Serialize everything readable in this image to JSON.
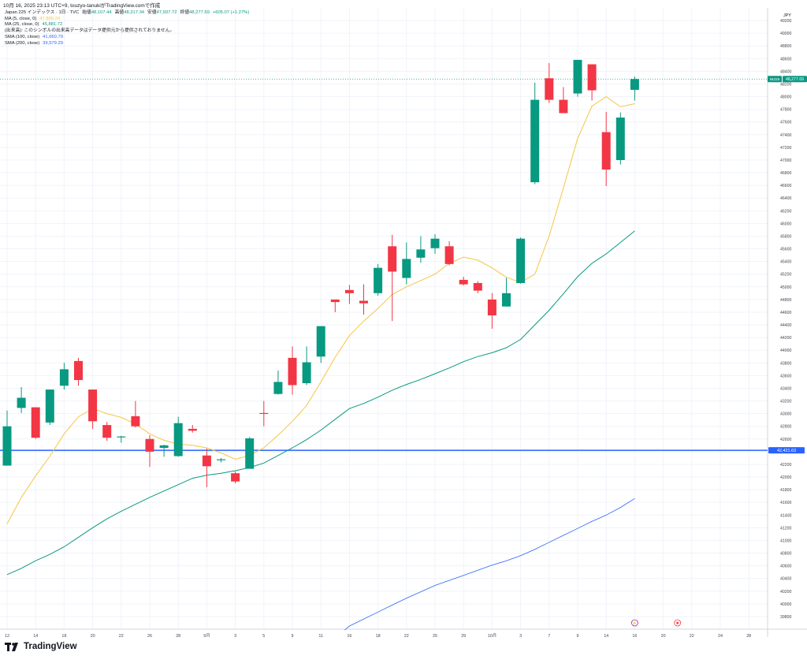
{
  "header": {
    "caption": "10月 16, 2025 23:13 UTC+9,  touzyo-tanukiがTradingView.comで作成"
  },
  "legend": {
    "symbol": "Japan 225 インデックス · 1日 · TVC",
    "open_label": "始値",
    "open": "48,107.44",
    "high_label": "高値",
    "high": "48,317.34",
    "low_label": "安値",
    "low": "47,937.72",
    "close_label": "終値",
    "close": "48,277.69",
    "change": "+605.07 (+1.27%)",
    "indicators": [
      {
        "label": "MA (5, close, 0)",
        "value": "47,889.24",
        "color": "#f5c542"
      },
      {
        "label": "MA (25, close, 0)",
        "value": "45,881.72",
        "color": "#089981"
      },
      {
        "label": "SMA (100, close)",
        "value": "41,660.79",
        "color": "#2962ff"
      },
      {
        "label": "SMA (200, close)",
        "value": "39,579.29",
        "color": "#2962ff"
      }
    ],
    "notice": "(出来高): このシンボルの出来高データはデータ提供元から提供されておりません。"
  },
  "footer": {
    "brand": "TradingView"
  },
  "chart_data": {
    "type": "candlestick",
    "currency": "JPY",
    "y_range": [
      39600,
      49400
    ],
    "y_ticks": [
      39800,
      40000,
      40200,
      40400,
      40600,
      40800,
      41000,
      41200,
      41400,
      41600,
      41800,
      42000,
      42200,
      42400,
      42600,
      42800,
      43000,
      43200,
      43400,
      43600,
      43800,
      44000,
      44200,
      44400,
      44600,
      44800,
      45000,
      45200,
      45400,
      45600,
      45800,
      46000,
      46200,
      46400,
      46600,
      46800,
      47000,
      47200,
      47400,
      47600,
      47800,
      48000,
      48200,
      48400,
      48600,
      48800,
      49000,
      49200
    ],
    "x_ticks": [
      {
        "i": 0,
        "label": "12"
      },
      {
        "i": 2,
        "label": "14"
      },
      {
        "i": 4,
        "label": "18"
      },
      {
        "i": 6,
        "label": "20"
      },
      {
        "i": 8,
        "label": "22"
      },
      {
        "i": 10,
        "label": "26"
      },
      {
        "i": 12,
        "label": "28"
      },
      {
        "i": 14,
        "label": "9月"
      },
      {
        "i": 16,
        "label": "3"
      },
      {
        "i": 18,
        "label": "5"
      },
      {
        "i": 20,
        "label": "9"
      },
      {
        "i": 22,
        "label": "11"
      },
      {
        "i": 24,
        "label": "16"
      },
      {
        "i": 26,
        "label": "18"
      },
      {
        "i": 28,
        "label": "22"
      },
      {
        "i": 30,
        "label": "25"
      },
      {
        "i": 32,
        "label": "29"
      },
      {
        "i": 34,
        "label": "10月"
      },
      {
        "i": 36,
        "label": "3"
      },
      {
        "i": 38,
        "label": "7"
      },
      {
        "i": 40,
        "label": "9"
      },
      {
        "i": 42,
        "label": "14"
      },
      {
        "i": 44,
        "label": "16"
      },
      {
        "i": 46,
        "label": "20"
      },
      {
        "i": 48,
        "label": "22"
      },
      {
        "i": 50,
        "label": "24"
      },
      {
        "i": 52,
        "label": "28"
      }
    ],
    "candles": [
      {
        "o": 42180,
        "h": 43050,
        "l": 42180,
        "c": 42800
      },
      {
        "o": 43090,
        "h": 43420,
        "l": 43010,
        "c": 43250
      },
      {
        "o": 43100,
        "h": 43100,
        "l": 42600,
        "c": 42620
      },
      {
        "o": 42860,
        "h": 43380,
        "l": 42820,
        "c": 43380
      },
      {
        "o": 43440,
        "h": 43800,
        "l": 43380,
        "c": 43700
      },
      {
        "o": 43830,
        "h": 43880,
        "l": 43440,
        "c": 43530
      },
      {
        "o": 43380,
        "h": 43380,
        "l": 42760,
        "c": 42880
      },
      {
        "o": 42820,
        "h": 42870,
        "l": 42570,
        "c": 42620
      },
      {
        "o": 42640,
        "h": 42650,
        "l": 42540,
        "c": 42640
      },
      {
        "o": 42960,
        "h": 43200,
        "l": 42780,
        "c": 42800
      },
      {
        "o": 42600,
        "h": 42660,
        "l": 42160,
        "c": 42400
      },
      {
        "o": 42460,
        "h": 42510,
        "l": 42320,
        "c": 42500
      },
      {
        "o": 42330,
        "h": 42950,
        "l": 42320,
        "c": 42850
      },
      {
        "o": 42760,
        "h": 42820,
        "l": 42700,
        "c": 42730
      },
      {
        "o": 42340,
        "h": 42450,
        "l": 41840,
        "c": 42170
      },
      {
        "o": 42280,
        "h": 42300,
        "l": 42230,
        "c": 42280
      },
      {
        "o": 42060,
        "h": 42090,
        "l": 41900,
        "c": 41930
      },
      {
        "o": 42130,
        "h": 42630,
        "l": 42130,
        "c": 42610
      },
      {
        "o": 43010,
        "h": 43200,
        "l": 42800,
        "c": 43000
      },
      {
        "o": 43310,
        "h": 43680,
        "l": 43300,
        "c": 43500
      },
      {
        "o": 43880,
        "h": 44060,
        "l": 43300,
        "c": 43450
      },
      {
        "o": 43480,
        "h": 44060,
        "l": 43450,
        "c": 43810
      },
      {
        "o": 43900,
        "h": 44380,
        "l": 43800,
        "c": 44380
      },
      {
        "o": 44800,
        "h": 44800,
        "l": 44600,
        "c": 44760
      },
      {
        "o": 44950,
        "h": 45030,
        "l": 44730,
        "c": 44900
      },
      {
        "o": 44780,
        "h": 45040,
        "l": 44560,
        "c": 44740
      },
      {
        "o": 44900,
        "h": 45360,
        "l": 44860,
        "c": 45300
      },
      {
        "o": 45640,
        "h": 45820,
        "l": 44460,
        "c": 45240
      },
      {
        "o": 45140,
        "h": 45700,
        "l": 45040,
        "c": 45440
      },
      {
        "o": 45460,
        "h": 45800,
        "l": 45380,
        "c": 45590
      },
      {
        "o": 45610,
        "h": 45830,
        "l": 45520,
        "c": 45760
      },
      {
        "o": 45640,
        "h": 45720,
        "l": 45340,
        "c": 45360
      },
      {
        "o": 45110,
        "h": 45160,
        "l": 45020,
        "c": 45040
      },
      {
        "o": 45060,
        "h": 45090,
        "l": 44900,
        "c": 44940
      },
      {
        "o": 44800,
        "h": 44900,
        "l": 44340,
        "c": 44550
      },
      {
        "o": 44690,
        "h": 45140,
        "l": 44690,
        "c": 44900
      },
      {
        "o": 45060,
        "h": 45780,
        "l": 45050,
        "c": 45760
      },
      {
        "o": 46650,
        "h": 48220,
        "l": 46620,
        "c": 47950
      },
      {
        "o": 48290,
        "h": 48530,
        "l": 47900,
        "c": 47950
      },
      {
        "o": 47950,
        "h": 48150,
        "l": 47740,
        "c": 47740
      },
      {
        "o": 48050,
        "h": 48580,
        "l": 48000,
        "c": 48580
      },
      {
        "o": 48510,
        "h": 48510,
        "l": 47940,
        "c": 48100
      },
      {
        "o": 47440,
        "h": 47760,
        "l": 46590,
        "c": 46850
      },
      {
        "o": 47000,
        "h": 47750,
        "l": 46930,
        "c": 47670
      },
      {
        "o": 48107.44,
        "h": 48317.34,
        "l": 47937.72,
        "c": 48277.69
      }
    ],
    "series": [
      {
        "name": "MA (5, close, 0)",
        "color": "#f5c542",
        "values": [
          41260,
          41680,
          42020,
          42330,
          42680,
          42950,
          43080,
          43000,
          42940,
          42840,
          42680,
          42580,
          42520,
          42500,
          42460,
          42380,
          42280,
          42340,
          42460,
          42660,
          42880,
          43130,
          43500,
          43890,
          44230,
          44460,
          44660,
          44880,
          45000,
          45100,
          45200,
          45370,
          45470,
          45420,
          45300,
          45150,
          45070,
          45200,
          45800,
          46560,
          47340,
          47850,
          48000,
          47840,
          47889.24
        ]
      },
      {
        "name": "MA (25, close, 0)",
        "color": "#089981",
        "values": [
          40460,
          40560,
          40680,
          40780,
          40900,
          41050,
          41200,
          41340,
          41460,
          41570,
          41680,
          41780,
          41880,
          41980,
          42030,
          42060,
          42100,
          42150,
          42220,
          42340,
          42460,
          42590,
          42740,
          42910,
          43080,
          43160,
          43260,
          43370,
          43460,
          43540,
          43630,
          43720,
          43820,
          43900,
          43960,
          44040,
          44170,
          44400,
          44630,
          44890,
          45160,
          45370,
          45520,
          45700,
          45881.72
        ]
      },
      {
        "name": "SMA (100, close)",
        "color": "#2962ff",
        "values": [
          null,
          null,
          null,
          null,
          null,
          null,
          null,
          null,
          null,
          null,
          null,
          null,
          null,
          null,
          null,
          null,
          null,
          null,
          null,
          null,
          null,
          null,
          null,
          null,
          39650,
          39760,
          39870,
          39980,
          40090,
          40190,
          40290,
          40370,
          40450,
          40530,
          40610,
          40680,
          40760,
          40860,
          40970,
          41080,
          41190,
          41300,
          41400,
          41520,
          41660.79
        ]
      }
    ],
    "horizontal_line": {
      "value": 42421.63,
      "label": "42,421.63",
      "color": "#2962ff"
    },
    "last_price": {
      "symbol": "NI225",
      "label": "48,277.69",
      "color": "#089981"
    },
    "up_color": "#089981",
    "down_color": "#f23645",
    "markers": [
      {
        "i": 44,
        "glyph": "⚡",
        "color": "#9c27b0"
      },
      {
        "i": 47,
        "glyph": "✱",
        "color": "#f23645"
      }
    ]
  }
}
